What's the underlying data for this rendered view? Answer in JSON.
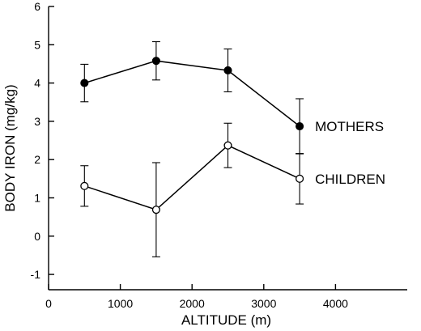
{
  "chart_data": {
    "type": "line",
    "title": "",
    "xlabel": "ALTITUDE (m)",
    "ylabel": "BODY IRON (mg/kg)",
    "xlim": [
      0,
      5000
    ],
    "ylim": [
      -1.4,
      6
    ],
    "x_ticks": [
      0,
      1000,
      2000,
      3000,
      4000
    ],
    "y_ticks": [
      -1,
      0,
      1,
      2,
      3,
      4,
      5,
      6
    ],
    "grid": false,
    "series": [
      {
        "name": "MOTHERS",
        "marker": "filled-circle",
        "x": [
          500,
          1500,
          2500,
          3500
        ],
        "y": [
          4.0,
          4.58,
          4.33,
          2.87
        ],
        "error": [
          0.49,
          0.5,
          0.56,
          0.72
        ]
      },
      {
        "name": "CHILDREN",
        "marker": "open-circle",
        "x": [
          500,
          1500,
          2500,
          3500
        ],
        "y": [
          1.31,
          0.69,
          2.37,
          1.5
        ],
        "error": [
          0.53,
          1.23,
          0.58,
          0.66
        ]
      }
    ]
  }
}
